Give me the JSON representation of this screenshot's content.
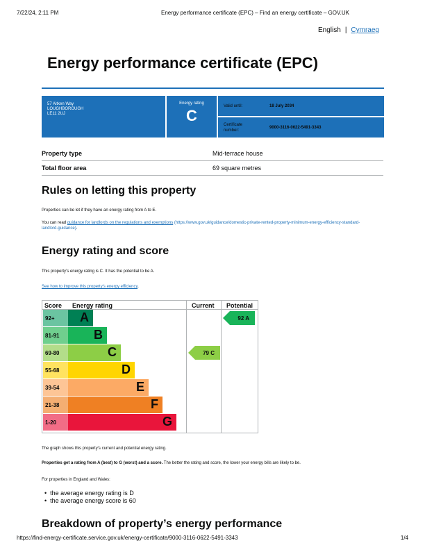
{
  "print_header": {
    "datetime": "7/22/24, 2:11 PM",
    "title": "Energy performance certificate (EPC) – Find an energy certificate – GOV.UK"
  },
  "language": {
    "english": "English",
    "separator": "|",
    "welsh": "Cymraeg"
  },
  "page_title": "Energy performance certificate (EPC)",
  "summary": {
    "address_lines": [
      "57 Aitken Way",
      "LOUGHBOROUGH",
      "LE11 2UJ"
    ],
    "rating_label": "Energy rating",
    "rating_letter": "C",
    "valid_until_label": "Valid until:",
    "valid_until_value": "18 July 2034",
    "certificate_label_1": "Certificate",
    "certificate_label_2": "number:",
    "certificate_value": "9000-3116-0622-5491-3343"
  },
  "facts": [
    {
      "label": "Property type",
      "value": "Mid-terrace house"
    },
    {
      "label": "Total floor area",
      "value": "69 square metres"
    }
  ],
  "letting": {
    "heading": "Rules on letting this property",
    "para1": "Properties can be let if they have an energy rating from A to E.",
    "para2_prefix": "You can read ",
    "para2_link": "guidance for landlords on the regulations and exemptions",
    "para2_url": " (https://www.gov.uk/guidance/domestic-private-rented-property-minimum-energy-efficiency-standard-",
    "para2_url_line2": "landlord-guidance)",
    "para2_suffix": "."
  },
  "rating_section": {
    "heading": "Energy rating and score",
    "para1": "This property’s energy rating is C. It has the potential to be A.",
    "improve_link": "See how to improve this property’s energy efficiency",
    "improve_suffix": "."
  },
  "epc_chart": {
    "col_score": "Score",
    "col_rating": "Energy rating",
    "col_current": "Current",
    "col_potential": "Potential",
    "bands": [
      {
        "score": "92+",
        "letter": "A",
        "color": "#008054",
        "score_bg": "#6bc4a1"
      },
      {
        "score": "81-91",
        "letter": "B",
        "color": "#19b459",
        "score_bg": "#6fcf8e"
      },
      {
        "score": "69-80",
        "letter": "C",
        "color": "#8dce46",
        "score_bg": "#b3dd8a"
      },
      {
        "score": "55-68",
        "letter": "D",
        "color": "#ffd500",
        "score_bg": "#ffe360"
      },
      {
        "score": "39-54",
        "letter": "E",
        "color": "#fcaa65",
        "score_bg": "#fdc596"
      },
      {
        "score": "21-38",
        "letter": "F",
        "color": "#ef8023",
        "score_bg": "#f4ae72"
      },
      {
        "score": "1-20",
        "letter": "G",
        "color": "#e9153b",
        "score_bg": "#f16d86"
      }
    ],
    "current": {
      "label": "79  C",
      "band": "C",
      "color": "#8dce46"
    },
    "potential": {
      "label": "92  A",
      "band": "A",
      "color": "#19b459"
    }
  },
  "after_chart": {
    "graph_note": "The graph shows this property’s current and potential energy rating.",
    "bold_part": "Properties get a rating from A (best) to G (worst) and a score.",
    "rest_part": " The better the rating and score, the lower your energy bills are likely to be.",
    "england_wales": "For properties in England and Wales:",
    "bullets": [
      "the average energy rating is D",
      "the average energy score is 60"
    ]
  },
  "breakdown_heading": "Breakdown of property’s energy performance",
  "print_footer": {
    "url": "https://find-energy-certificate.service.gov.uk/energy-certificate/9000-3116-0622-5491-3343",
    "page": "1/4"
  }
}
